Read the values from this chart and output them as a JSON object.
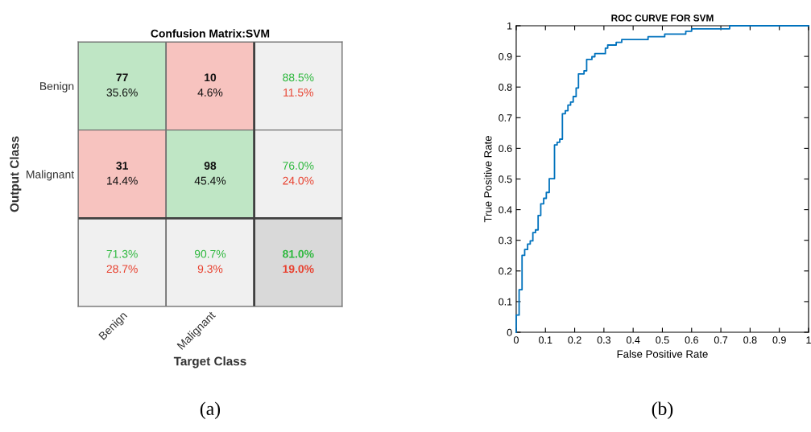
{
  "chart_data": [
    {
      "type": "heatmap",
      "title": "Confusion Matrix:SVM",
      "xlabel": "Target Class",
      "ylabel": "Output Class",
      "categories": [
        "Benign",
        "Malignant",
        null
      ],
      "y_categories": [
        "Benign",
        "Malignant",
        null
      ],
      "cells": [
        [
          77,
          10,
          88.5
        ],
        [
          31,
          98,
          76.0
        ],
        [
          71.3,
          90.7,
          81.0
        ]
      ],
      "cell_labels": [
        [
          "77",
          "10",
          "88.5%"
        ],
        [
          "31",
          "98",
          "76.0%"
        ],
        [
          "71.3%",
          "90.7%",
          "81.0%"
        ]
      ],
      "annotations": [
        "35.6%",
        "4.6%",
        "11.5%",
        "14.4%",
        "45.4%",
        "24.0%",
        "28.7%",
        "9.3%",
        "19.0%",
        "(a)"
      ]
    },
    {
      "type": "step",
      "title": "ROC CURVE FOR SVM",
      "xlabel": "False Positive Rate",
      "ylabel": "True Positive Rate",
      "x": [
        0,
        0,
        0.01,
        0.02,
        0.029,
        0.039,
        0.048,
        0.057,
        0.066,
        0.075,
        0.084,
        0.094,
        0.103,
        0.113,
        0.131,
        0.14,
        0.149,
        0.158,
        0.168,
        0.177,
        0.186,
        0.195,
        0.205,
        0.213,
        0.232,
        0.241,
        0.259,
        0.269,
        0.305,
        0.313,
        0.342,
        0.361,
        0.451,
        0.508,
        0.58,
        0.6,
        0.73,
        1
      ],
      "values": [
        0,
        0.056,
        0.139,
        0.251,
        0.27,
        0.288,
        0.298,
        0.325,
        0.334,
        0.381,
        0.419,
        0.437,
        0.456,
        0.501,
        0.611,
        0.62,
        0.63,
        0.713,
        0.723,
        0.741,
        0.751,
        0.769,
        0.797,
        0.843,
        0.853,
        0.89,
        0.899,
        0.909,
        0.927,
        0.937,
        0.946,
        0.955,
        0.964,
        0.973,
        0.982,
        0.99,
        1,
        1
      ],
      "color": "#0072bd",
      "xlim": [
        0,
        1
      ],
      "ylim": [
        0,
        1
      ],
      "xticks": [
        0,
        0.1,
        0.2,
        0.3,
        0.4,
        0.5,
        0.6,
        0.7,
        0.8,
        0.9,
        1
      ],
      "yticks": [
        0,
        0.1,
        0.2,
        0.3,
        0.4,
        0.5,
        0.6,
        0.7,
        0.8,
        0.9,
        1
      ],
      "grid": false,
      "annotations": [
        "(b)"
      ]
    }
  ]
}
